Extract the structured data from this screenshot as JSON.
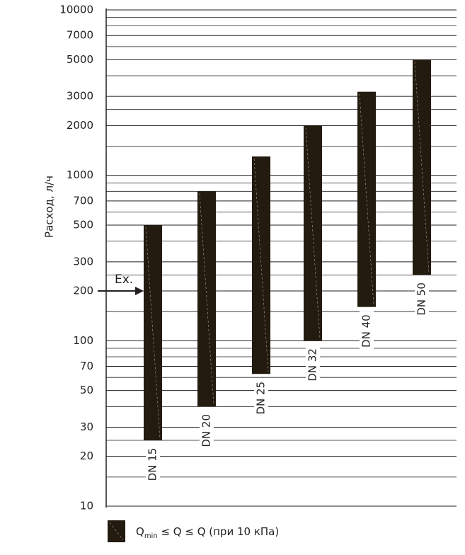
{
  "chart_data": {
    "type": "range-bar",
    "y_label": "Расход, л/ч",
    "log_y": true,
    "ylim": [
      10,
      10000
    ],
    "yticks": [
      10,
      20,
      30,
      50,
      70,
      100,
      200,
      300,
      500,
      700,
      1000,
      2000,
      3000,
      5000,
      7000,
      10000
    ],
    "minor_yticks": [
      15,
      25,
      40,
      60,
      80,
      90,
      150,
      250,
      400,
      600,
      800,
      900,
      1500,
      2500,
      4000,
      6000,
      8000,
      9000
    ],
    "grid": true,
    "color": "#231a10",
    "categories": [
      "DN 15",
      "DN 20",
      "DN 25",
      "DN 32",
      "DN 40",
      "DN 50"
    ],
    "low": [
      25,
      40,
      63,
      100,
      160,
      250
    ],
    "high": [
      500,
      800,
      1300,
      2000,
      3200,
      5000
    ],
    "annotation": {
      "text": "Ex.",
      "value": 200
    },
    "legend": {
      "symbol": "Q",
      "subscript": "min",
      "text": " ≤ Q ≤ Q (при 10 кПа)"
    }
  }
}
